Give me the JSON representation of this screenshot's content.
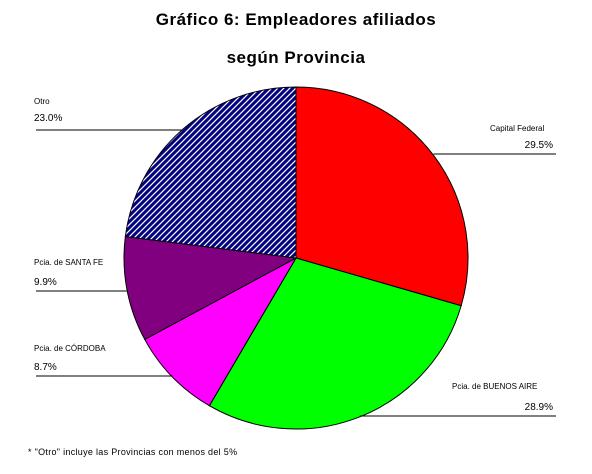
{
  "chart_data": {
    "type": "pie",
    "title": "Gráfico 6: Empleadores afiliados",
    "subtitle": "según Provincia",
    "slices": [
      {
        "label": "Capital Federal",
        "value": 29.5,
        "text": "29.5%",
        "color": "#ff0000",
        "pattern": "solid"
      },
      {
        "label": "Pcia. de BUENOS AIRE",
        "value": 28.9,
        "text": "28.9%",
        "color": "#00ff00",
        "pattern": "solid"
      },
      {
        "label": "Pcia. de CÓRDOBA",
        "value": 8.7,
        "text": "8.7%",
        "color": "#ff00ff",
        "pattern": "solid"
      },
      {
        "label": "Pcia. de SANTA FE",
        "value": 9.9,
        "text": "9.9%",
        "color": "#800080",
        "pattern": "solid"
      },
      {
        "label": "Otro",
        "value": 23.0,
        "text": "23.0%",
        "color": "#000080",
        "pattern": "diagonal-hatch"
      }
    ],
    "footnote": "* \"Otro\" incluye las Provincias con menos del 5%"
  }
}
